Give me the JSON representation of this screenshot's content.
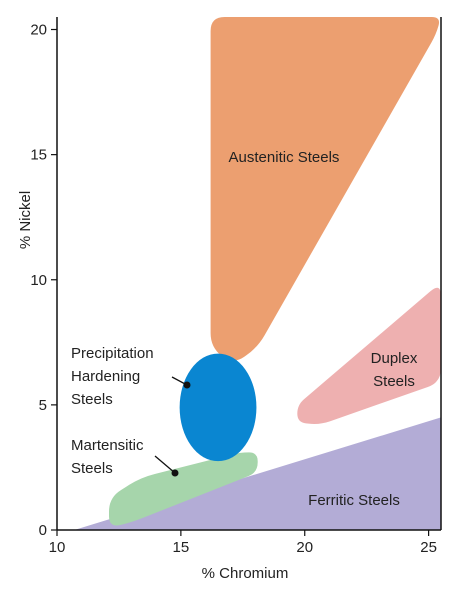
{
  "chart_data": {
    "type": "area",
    "title": "",
    "xlabel": "% Chromium",
    "ylabel": "% Nickel",
    "xlim": [
      10,
      25.5
    ],
    "ylim": [
      0,
      20.5
    ],
    "x_ticks": [
      "10",
      "15",
      "20",
      "25"
    ],
    "y_ticks": [
      "0",
      "5",
      "10",
      "15",
      "20"
    ],
    "grid": false,
    "regions": [
      {
        "name": "Ferritic Steels",
        "color": "#b3acd6",
        "label_lines": [
          "Ferritic Steels"
        ],
        "polygon": [
          [
            10.7,
            0
          ],
          [
            25.5,
            4.5
          ],
          [
            25.5,
            0
          ]
        ]
      },
      {
        "name": "Austenitic Steels",
        "color": "#ec9f70",
        "label_lines": [
          "Austenitic Steels"
        ],
        "polygon": [
          [
            16.2,
            20.5
          ],
          [
            25.5,
            20.5
          ],
          [
            25.3,
            19.8
          ],
          [
            18.1,
            7.3
          ],
          [
            17.1,
            6.6
          ],
          [
            16.2,
            7.3
          ]
        ]
      },
      {
        "name": "Duplex Steels",
        "color": "#eeb0b0",
        "label_lines": [
          "Duplex",
          "Steels"
        ],
        "polygon": [
          [
            25.5,
            9.9
          ],
          [
            25.5,
            5.9
          ],
          [
            20.6,
            4.2
          ],
          [
            19.7,
            4.3
          ],
          [
            19.7,
            5.0
          ]
        ]
      },
      {
        "name": "Martensitic Steels",
        "color": "#a6d5ab",
        "label_lines": [
          "Martensitic",
          "Steels"
        ],
        "polygon": [
          [
            12.1,
            0.1
          ],
          [
            13.0,
            0.3
          ],
          [
            18.1,
            2.3
          ],
          [
            18.1,
            3.1
          ],
          [
            17.4,
            3.1
          ],
          [
            13.4,
            2.1
          ],
          [
            12.1,
            1.3
          ]
        ]
      },
      {
        "name": "Precipitation Hardening Steels",
        "color": "#0a86d1",
        "label_lines": [
          "Precipitation",
          "Hardening",
          "Steels"
        ],
        "shape": "circle",
        "center": [
          16.5,
          4.9
        ],
        "radius_x": 1.55,
        "radius_y": 2.15
      }
    ]
  }
}
